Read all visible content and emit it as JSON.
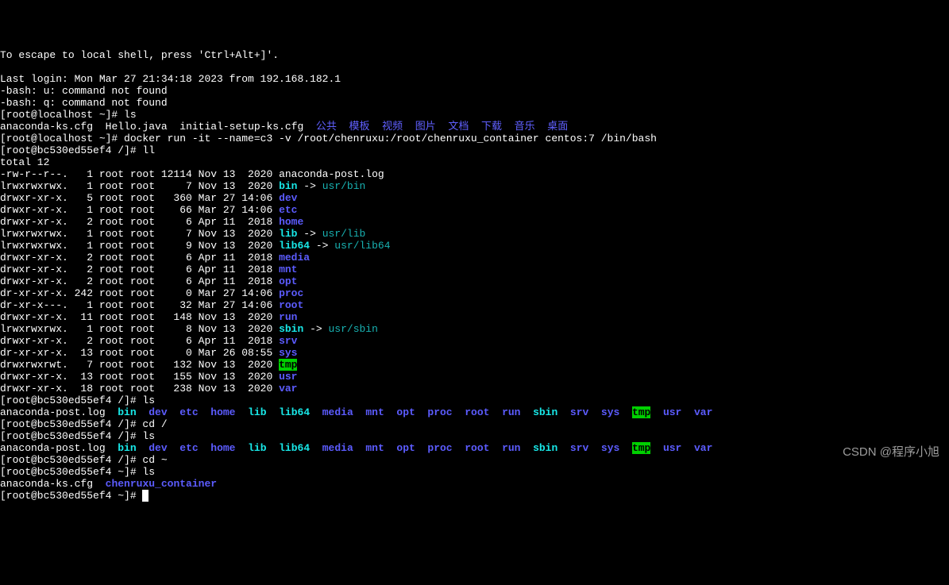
{
  "colors": {
    "bg": "#000000",
    "fg_white": "#ffffff",
    "fg_cyan": "#18b2b2",
    "fg_bold_cyan": "#18e8e8",
    "fg_blue": "#6060ff",
    "fg_bold_blue": "#5c5cff",
    "tmp_bg": "#00d000",
    "tmp_fg": "#000000",
    "watermark_fg": "#b8b8b8"
  },
  "header": {
    "escape_hint": "To escape to local shell, press 'Ctrl+Alt+]'.",
    "last_login": "Last login: Mon Mar 27 21:34:18 2023 from 192.168.182.1",
    "bash_err_u": "-bash: u: command not found",
    "bash_err_q": "-bash: q: command not found"
  },
  "prompts": {
    "localhost_home": "[root@localhost ~]# ",
    "container_root": "[root@bc530ed55ef4 /]# ",
    "container_home": "[root@bc530ed55ef4 ~]# "
  },
  "commands": {
    "ls1": "ls",
    "docker": "docker run -it --name=c3 -v /root/chenruxu:/root/chenruxu_container centos:7 /bin/bash",
    "ll": "ll",
    "ls2": "ls",
    "cd_root": "cd /",
    "ls3": "ls",
    "cd_home": "cd ~",
    "ls4": "ls"
  },
  "ls_top": {
    "plain": [
      "anaconda-ks.cfg",
      "Hello.java",
      "initial-setup-ks.cfg"
    ],
    "blue": [
      "公共",
      "模板",
      "视频",
      "图片",
      "文档",
      "下载",
      "音乐",
      "桌面"
    ]
  },
  "total": "total 12",
  "ll_rows": [
    {
      "perm": "-rw-r--r--.",
      "n": "  1",
      "own": "root root",
      "size": "12114",
      "date": "Nov 13  2020",
      "name": "anaconda-post.log",
      "type": "file"
    },
    {
      "perm": "lrwxrwxrwx.",
      "n": "  1",
      "own": "root root",
      "size": "    7",
      "date": "Nov 13  2020",
      "name": "bin",
      "type": "link",
      "target": "usr/bin"
    },
    {
      "perm": "drwxr-xr-x.",
      "n": "  5",
      "own": "root root",
      "size": "  360",
      "date": "Mar 27 14:06",
      "name": "dev",
      "type": "dir"
    },
    {
      "perm": "drwxr-xr-x.",
      "n": "  1",
      "own": "root root",
      "size": "   66",
      "date": "Mar 27 14:06",
      "name": "etc",
      "type": "dir"
    },
    {
      "perm": "drwxr-xr-x.",
      "n": "  2",
      "own": "root root",
      "size": "    6",
      "date": "Apr 11  2018",
      "name": "home",
      "type": "dir"
    },
    {
      "perm": "lrwxrwxrwx.",
      "n": "  1",
      "own": "root root",
      "size": "    7",
      "date": "Nov 13  2020",
      "name": "lib",
      "type": "link",
      "target": "usr/lib"
    },
    {
      "perm": "lrwxrwxrwx.",
      "n": "  1",
      "own": "root root",
      "size": "    9",
      "date": "Nov 13  2020",
      "name": "lib64",
      "type": "link",
      "target": "usr/lib64"
    },
    {
      "perm": "drwxr-xr-x.",
      "n": "  2",
      "own": "root root",
      "size": "    6",
      "date": "Apr 11  2018",
      "name": "media",
      "type": "dir"
    },
    {
      "perm": "drwxr-xr-x.",
      "n": "  2",
      "own": "root root",
      "size": "    6",
      "date": "Apr 11  2018",
      "name": "mnt",
      "type": "dir"
    },
    {
      "perm": "drwxr-xr-x.",
      "n": "  2",
      "own": "root root",
      "size": "    6",
      "date": "Apr 11  2018",
      "name": "opt",
      "type": "dir"
    },
    {
      "perm": "dr-xr-xr-x.",
      "n": "242",
      "own": "root root",
      "size": "    0",
      "date": "Mar 27 14:06",
      "name": "proc",
      "type": "dir"
    },
    {
      "perm": "dr-xr-x---.",
      "n": "  1",
      "own": "root root",
      "size": "   32",
      "date": "Mar 27 14:06",
      "name": "root",
      "type": "dir"
    },
    {
      "perm": "drwxr-xr-x.",
      "n": " 11",
      "own": "root root",
      "size": "  148",
      "date": "Nov 13  2020",
      "name": "run",
      "type": "dir"
    },
    {
      "perm": "lrwxrwxrwx.",
      "n": "  1",
      "own": "root root",
      "size": "    8",
      "date": "Nov 13  2020",
      "name": "sbin",
      "type": "link",
      "target": "usr/sbin"
    },
    {
      "perm": "drwxr-xr-x.",
      "n": "  2",
      "own": "root root",
      "size": "    6",
      "date": "Apr 11  2018",
      "name": "srv",
      "type": "dir"
    },
    {
      "perm": "dr-xr-xr-x.",
      "n": " 13",
      "own": "root root",
      "size": "    0",
      "date": "Mar 26 08:55",
      "name": "sys",
      "type": "dir"
    },
    {
      "perm": "drwxrwxrwt.",
      "n": "  7",
      "own": "root root",
      "size": "  132",
      "date": "Nov 13  2020",
      "name": "tmp",
      "type": "sticky"
    },
    {
      "perm": "drwxr-xr-x.",
      "n": " 13",
      "own": "root root",
      "size": "  155",
      "date": "Nov 13  2020",
      "name": "usr",
      "type": "dir"
    },
    {
      "perm": "drwxr-xr-x.",
      "n": " 18",
      "own": "root root",
      "size": "  238",
      "date": "Nov 13  2020",
      "name": "var",
      "type": "dir"
    }
  ],
  "ls_dirline": [
    {
      "t": "anaconda-post.log",
      "c": "w"
    },
    {
      "t": "bin",
      "c": "bcy"
    },
    {
      "t": "dev",
      "c": "bbl"
    },
    {
      "t": "etc",
      "c": "bbl"
    },
    {
      "t": "home",
      "c": "bbl"
    },
    {
      "t": "lib",
      "c": "bcy"
    },
    {
      "t": "lib64",
      "c": "bcy"
    },
    {
      "t": "media",
      "c": "bbl"
    },
    {
      "t": "mnt",
      "c": "bbl"
    },
    {
      "t": "opt",
      "c": "bbl"
    },
    {
      "t": "proc",
      "c": "bbl"
    },
    {
      "t": "root",
      "c": "bbl"
    },
    {
      "t": "run",
      "c": "bbl"
    },
    {
      "t": "sbin",
      "c": "bcy"
    },
    {
      "t": "srv",
      "c": "bbl"
    },
    {
      "t": "sys",
      "c": "bbl"
    },
    {
      "t": "tmp",
      "c": "gr-bg"
    },
    {
      "t": "usr",
      "c": "bbl"
    },
    {
      "t": "var",
      "c": "bbl"
    }
  ],
  "ls_home": {
    "file": "anaconda-ks.cfg",
    "dir": "chenruxu_container"
  },
  "watermark": "CSDN @程序小旭"
}
